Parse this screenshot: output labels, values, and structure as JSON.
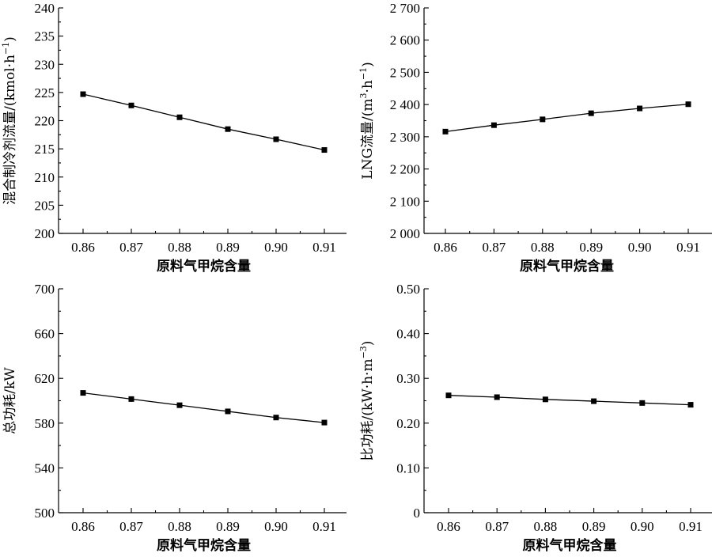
{
  "chart_data": [
    {
      "type": "line",
      "xlabel": "原料气甲烷含量",
      "ylabel": "混合制冷剂流量/(kmol·h",
      "ylabel_sup": "−1",
      "ylabel_suffix": ")",
      "x": [
        0.86,
        0.87,
        0.88,
        0.89,
        0.9,
        0.91
      ],
      "xticks": [
        "0.86",
        "0.87",
        "0.88",
        "0.89",
        "0.90",
        "0.91"
      ],
      "values": [
        224.7,
        222.7,
        220.6,
        218.5,
        216.7,
        214.8
      ],
      "ylim": [
        200,
        240
      ],
      "yticks": [
        "200",
        "205",
        "210",
        "215",
        "220",
        "225",
        "230",
        "235",
        "240"
      ],
      "grid": false
    },
    {
      "type": "line",
      "xlabel": "原料气甲烷含量",
      "ylabel": "LNG流量/(m",
      "ylabel_sup": "3",
      "ylabel_mid": "·h",
      "ylabel_sup2": "−1",
      "ylabel_suffix": ")",
      "x": [
        0.86,
        0.87,
        0.88,
        0.89,
        0.9,
        0.91
      ],
      "xticks": [
        "0.86",
        "0.87",
        "0.88",
        "0.89",
        "0.90",
        "0.91"
      ],
      "values": [
        2316,
        2336,
        2354,
        2373,
        2388,
        2401
      ],
      "ylim": [
        2000,
        2700
      ],
      "yticks": [
        "2 000",
        "2 100",
        "2 200",
        "2 300",
        "2 400",
        "2 500",
        "2 600",
        "2 700"
      ],
      "grid": false
    },
    {
      "type": "line",
      "xlabel": "原料气甲烷含量",
      "ylabel": "总功耗/kW",
      "x": [
        0.86,
        0.87,
        0.88,
        0.89,
        0.9,
        0.91
      ],
      "xticks": [
        "0.86",
        "0.87",
        "0.88",
        "0.89",
        "0.90",
        "0.91"
      ],
      "values": [
        607,
        601.5,
        596,
        590.5,
        585,
        580.5
      ],
      "ylim": [
        500,
        700
      ],
      "yticks": [
        "500",
        "540",
        "580",
        "620",
        "660",
        "700"
      ],
      "grid": false
    },
    {
      "type": "line",
      "xlabel": "原料气甲烷含量",
      "ylabel": "比功耗/(kW·h·m",
      "ylabel_sup": "−3",
      "ylabel_suffix": ")",
      "x": [
        0.86,
        0.87,
        0.88,
        0.89,
        0.9,
        0.91
      ],
      "xticks": [
        "0.86",
        "0.87",
        "0.88",
        "0.89",
        "0.90",
        "0.91"
      ],
      "values": [
        0.262,
        0.258,
        0.253,
        0.249,
        0.245,
        0.241
      ],
      "ylim": [
        0,
        0.5
      ],
      "yticks": [
        "0",
        "0.10",
        "0.20",
        "0.30",
        "0.40",
        "0.50"
      ],
      "grid": false
    }
  ]
}
